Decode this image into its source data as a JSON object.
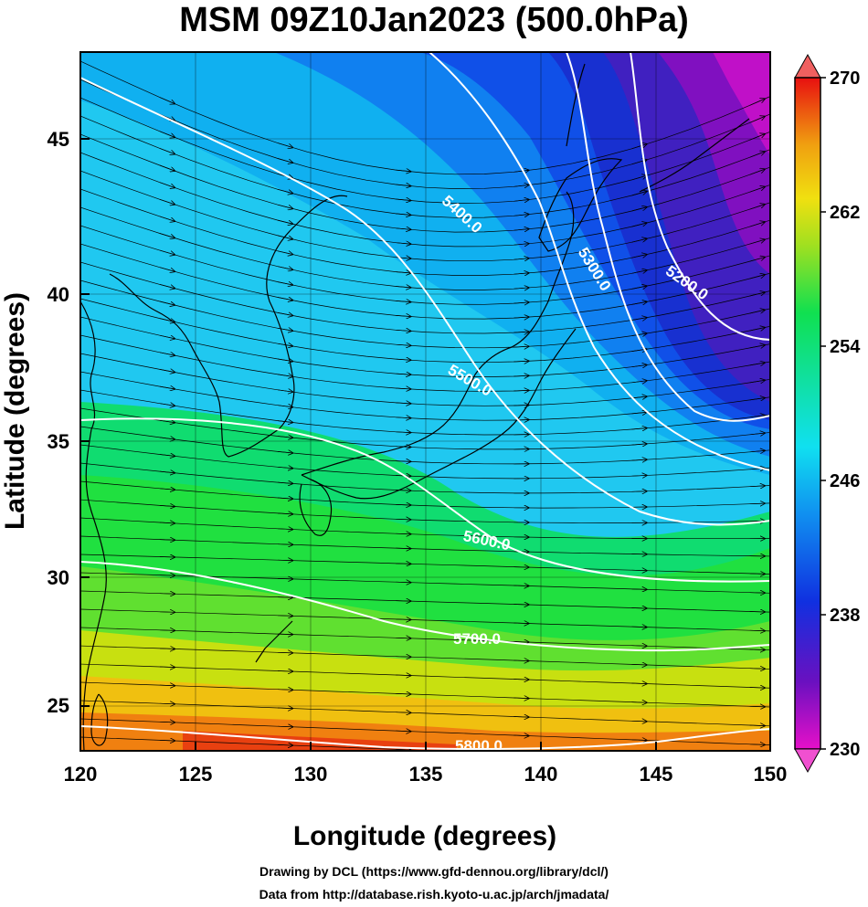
{
  "title": "MSM 09Z10Jan2023 (500.0hPa)",
  "x_axis": {
    "label": "Longitude (degrees)",
    "ticks": [
      "120",
      "125",
      "130",
      "135",
      "140",
      "145",
      "150"
    ]
  },
  "y_axis": {
    "label": "Latitude  (degrees)",
    "ticks": [
      "25",
      "30",
      "35",
      "40",
      "45"
    ]
  },
  "colorbar": {
    "ticks": [
      "230",
      "238",
      "246",
      "254",
      "262",
      "270"
    ],
    "min": 230,
    "max": 270
  },
  "contours": [
    {
      "label": "5200.0"
    },
    {
      "label": "5300.0"
    },
    {
      "label": "5400.0"
    },
    {
      "label": "5500.0"
    },
    {
      "label": "5600.0"
    },
    {
      "label": "5700.0"
    },
    {
      "label": "5800.0"
    }
  ],
  "credits": {
    "line1": "Drawing by DCL (https://www.gfd-dennou.org/library/dcl/)",
    "line2": "Data from http://database.rish.kyoto-u.ac.jp/arch/jmadata/"
  },
  "colors": {
    "coldest": "#e610c8",
    "cold": "#1030e0",
    "cool": "#10d8f0",
    "mid": "#10e050",
    "warm": "#e8e010",
    "hot": "#e81010",
    "contour": "#ffffff",
    "coast": "#000000"
  }
}
